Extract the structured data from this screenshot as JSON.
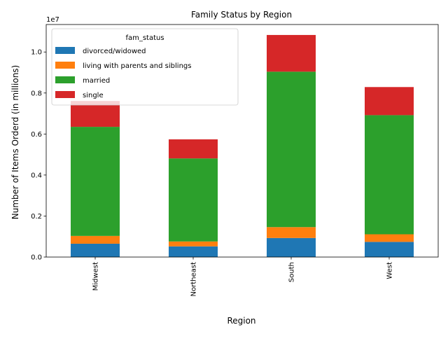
{
  "chart_data": {
    "type": "bar",
    "stacked": true,
    "title": "Family Status by Region",
    "xlabel": "Region",
    "ylabel": "Number of Items Orderd (in millions)",
    "offset_label": "1e7",
    "categories": [
      "Midwest",
      "Northeast",
      "South",
      "West"
    ],
    "ylim": [
      0,
      1.134
    ],
    "yticks": [
      0.0,
      0.2,
      0.4,
      0.6,
      0.8,
      1.0
    ],
    "ytick_labels": [
      "0.0",
      "0.2",
      "0.4",
      "0.6",
      "0.8",
      "1.0"
    ],
    "grid": false,
    "legend": {
      "title": "fam_status",
      "placement": "top-left"
    },
    "series": [
      {
        "name": "divorced/widowed",
        "color": "#1f77b4",
        "values": [
          0.065,
          0.052,
          0.093,
          0.074
        ]
      },
      {
        "name": "living with parents and siblings",
        "color": "#ff7f0e",
        "values": [
          0.038,
          0.024,
          0.053,
          0.037
        ]
      },
      {
        "name": "married",
        "color": "#2ca02c",
        "values": [
          0.532,
          0.405,
          0.758,
          0.581
        ]
      },
      {
        "name": "single",
        "color": "#d62728",
        "values": [
          0.126,
          0.093,
          0.179,
          0.137
        ]
      }
    ]
  }
}
